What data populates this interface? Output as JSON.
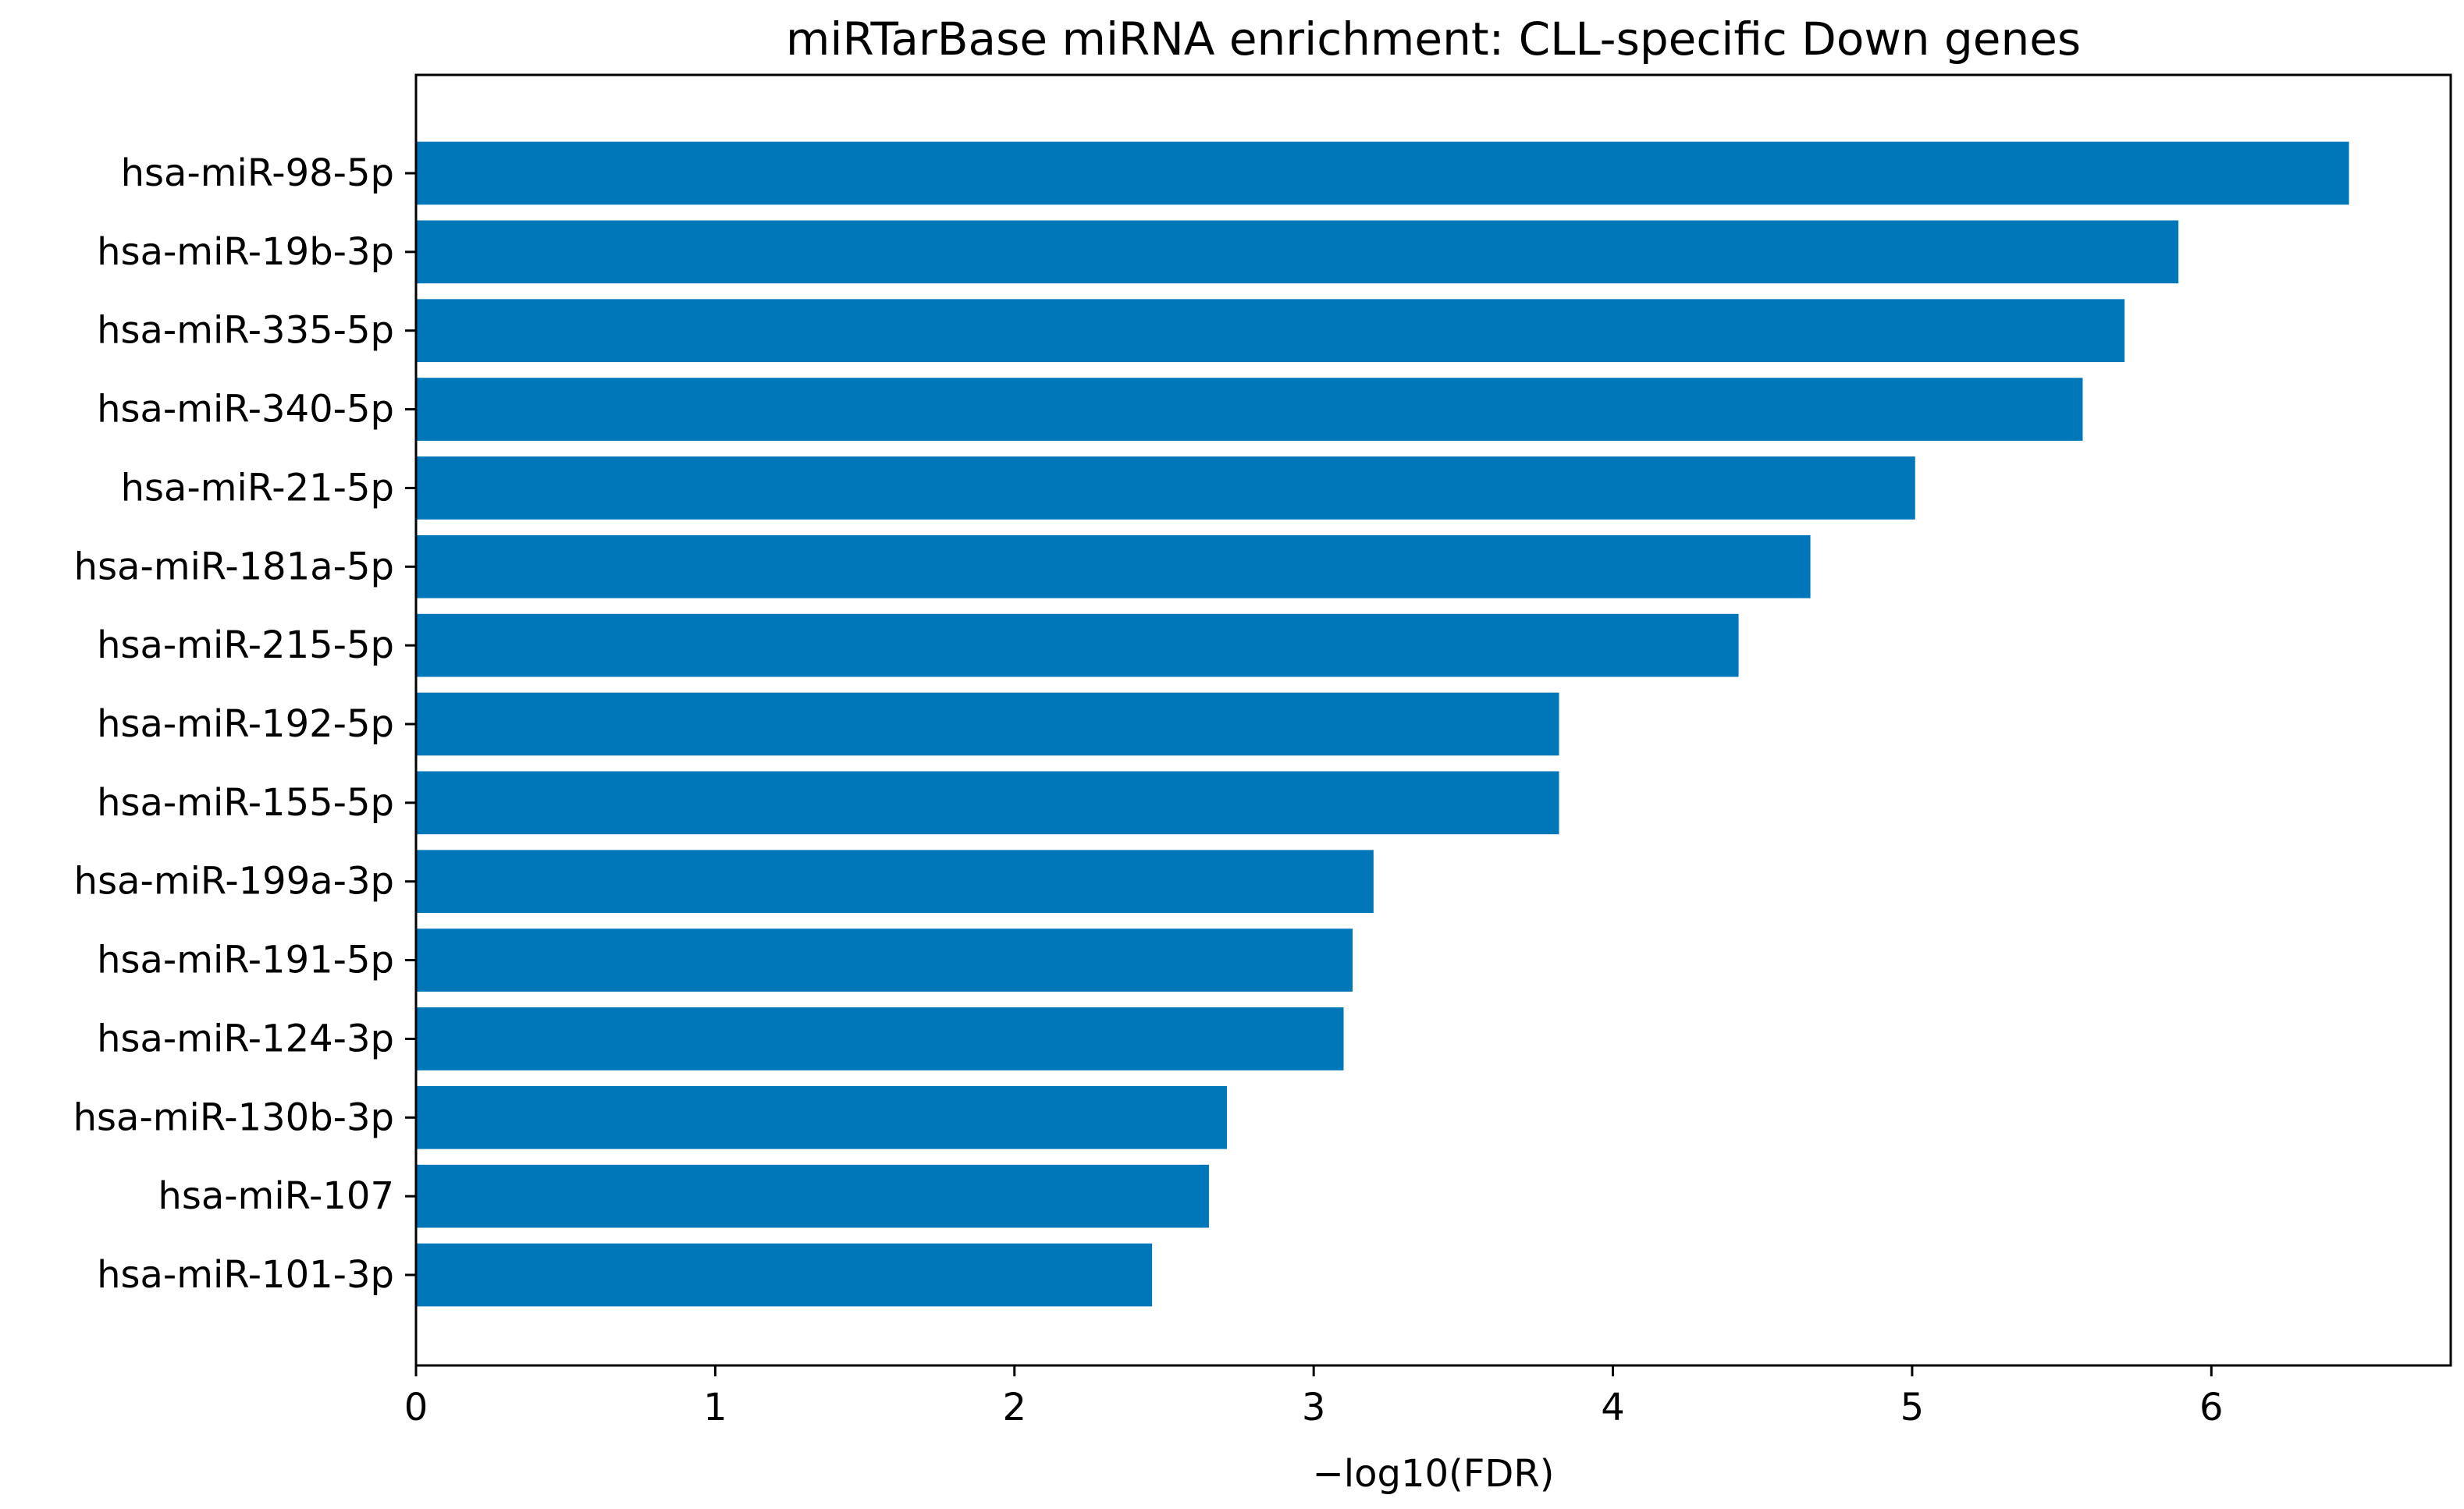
{
  "chart_data": {
    "type": "bar",
    "orientation": "horizontal",
    "title": "miRTarBase miRNA enrichment: CLL-specific Down genes",
    "xlabel": "−log10(FDR)",
    "ylabel": "",
    "xlim": [
      0,
      6.8
    ],
    "xticks": [
      "0",
      "1",
      "2",
      "3",
      "4",
      "5",
      "6"
    ],
    "grid": false,
    "bar_color": "#0077b8",
    "categories": [
      "hsa-miR-98-5p",
      "hsa-miR-19b-3p",
      "hsa-miR-335-5p",
      "hsa-miR-340-5p",
      "hsa-miR-21-5p",
      "hsa-miR-181a-5p",
      "hsa-miR-215-5p",
      "hsa-miR-192-5p",
      "hsa-miR-155-5p",
      "hsa-miR-199a-3p",
      "hsa-miR-191-5p",
      "hsa-miR-124-3p",
      "hsa-miR-130b-3p",
      "hsa-miR-107",
      "hsa-miR-101-3p"
    ],
    "values": [
      6.46,
      5.89,
      5.71,
      5.57,
      5.01,
      4.66,
      4.42,
      3.82,
      3.82,
      3.2,
      3.13,
      3.1,
      2.71,
      2.65,
      2.46
    ]
  }
}
